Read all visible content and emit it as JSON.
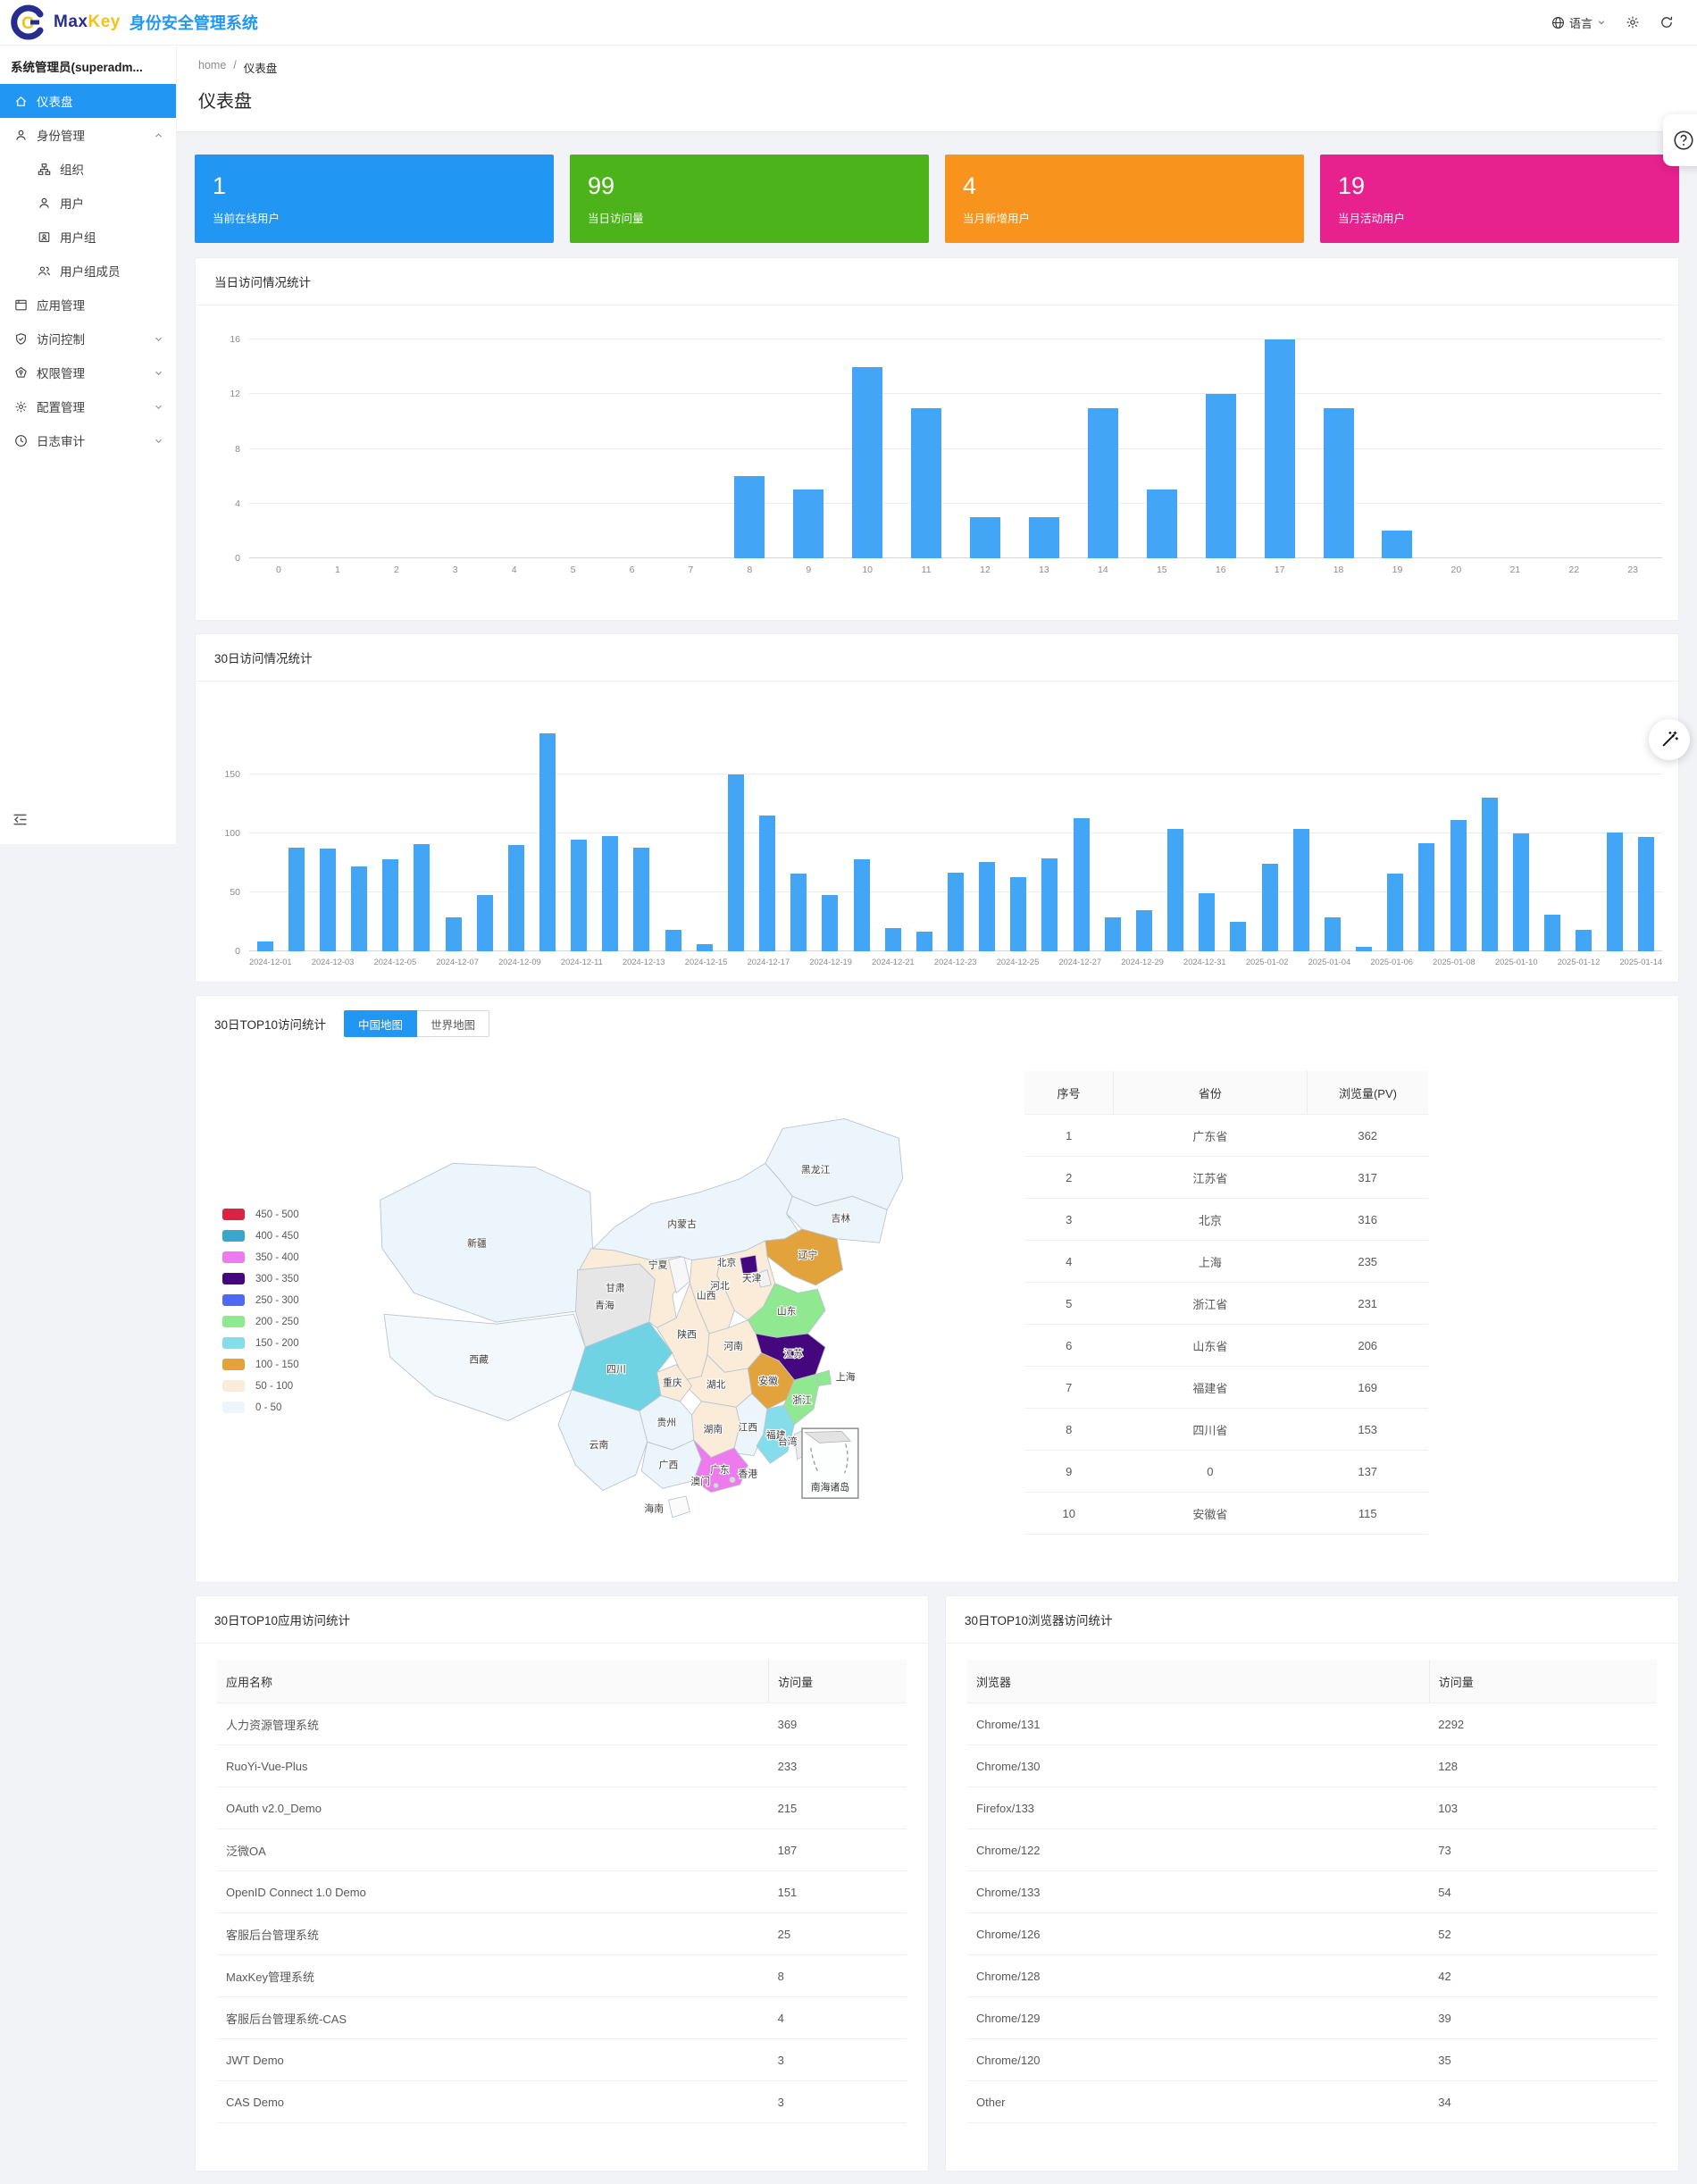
{
  "header": {
    "brand_max": "Max",
    "brand_key": "Key",
    "brand_title": "身份安全管理系统",
    "lang_label": "语言"
  },
  "sidebar": {
    "user": "系统管理员(superadm...",
    "items": [
      {
        "id": "dashboard",
        "icon": "home",
        "label": "仪表盘",
        "active": true
      },
      {
        "id": "identity",
        "icon": "user",
        "label": "身份管理",
        "expanded": true,
        "children": [
          {
            "id": "org",
            "icon": "org",
            "label": "组织"
          },
          {
            "id": "users",
            "icon": "user",
            "label": "用户"
          },
          {
            "id": "usergroup",
            "icon": "badge",
            "label": "用户组"
          },
          {
            "id": "groupmember",
            "icon": "users",
            "label": "用户组成员"
          }
        ]
      },
      {
        "id": "apps",
        "icon": "app",
        "label": "应用管理"
      },
      {
        "id": "access",
        "icon": "shield",
        "label": "访问控制",
        "collapsible": true
      },
      {
        "id": "permission",
        "icon": "perm",
        "label": "权限管理",
        "collapsible": true
      },
      {
        "id": "config",
        "icon": "gear",
        "label": "配置管理",
        "collapsible": true
      },
      {
        "id": "audit",
        "icon": "clock",
        "label": "日志审计",
        "collapsible": true
      }
    ]
  },
  "breadcrumb": {
    "home": "home",
    "sep": "/",
    "current": "仪表盘"
  },
  "page_title": "仪表盘",
  "stat_cards": [
    {
      "value": "1",
      "label": "当前在线用户",
      "color": "#2196f3"
    },
    {
      "value": "99",
      "label": "当日访问量",
      "color": "#4cb31b"
    },
    {
      "value": "4",
      "label": "当月新增用户",
      "color": "#f8941e"
    },
    {
      "value": "19",
      "label": "当月活动用户",
      "color": "#e7218e"
    }
  ],
  "chart_data": [
    {
      "type": "bar",
      "title": "当日访问情况统计",
      "xlabel": "",
      "ylabel": "",
      "x": [
        "0",
        "1",
        "2",
        "3",
        "4",
        "5",
        "6",
        "7",
        "8",
        "9",
        "10",
        "11",
        "12",
        "13",
        "14",
        "15",
        "16",
        "17",
        "18",
        "19",
        "20",
        "21",
        "22",
        "23"
      ],
      "values": [
        0,
        0,
        0,
        0,
        0,
        0,
        0,
        0,
        6,
        5,
        14,
        11,
        3,
        3,
        11,
        5,
        12,
        16,
        11,
        2,
        0,
        0,
        0,
        0
      ],
      "ylim": [
        0,
        16
      ],
      "yticks": [
        0,
        4,
        8,
        12,
        16
      ],
      "bar_color": "#42a5f5",
      "grid": true,
      "legend_position": "none"
    },
    {
      "type": "bar",
      "title": "30日访问情况统计",
      "xlabel": "",
      "ylabel": "",
      "x": [
        "2024-12-01",
        "2024-12-02",
        "2024-12-03",
        "2024-12-04",
        "2024-12-05",
        "2024-12-06",
        "2024-12-07",
        "2024-12-08",
        "2024-12-09",
        "2024-12-10",
        "2024-12-11",
        "2024-12-12",
        "2024-12-13",
        "2024-12-14",
        "2024-12-15",
        "2024-12-16",
        "2024-12-17",
        "2024-12-18",
        "2024-12-19",
        "2024-12-20",
        "2024-12-21",
        "2024-12-22",
        "2024-12-23",
        "2024-12-24",
        "2024-12-25",
        "2024-12-26",
        "2024-12-27",
        "2024-12-28",
        "2024-12-29",
        "2024-12-30",
        "2024-12-31",
        "2025-01-01",
        "2025-01-02",
        "2025-01-03",
        "2025-01-04",
        "2025-01-05",
        "2025-01-06",
        "2025-01-07",
        "2025-01-08",
        "2025-01-09",
        "2025-01-10",
        "2025-01-11",
        "2025-01-12",
        "2025-01-13",
        "2025-01-14"
      ],
      "values": [
        8,
        88,
        87,
        72,
        78,
        91,
        29,
        48,
        90,
        185,
        95,
        98,
        88,
        18,
        6,
        150,
        115,
        66,
        48,
        78,
        20,
        17,
        67,
        76,
        63,
        79,
        113,
        29,
        35,
        104,
        49,
        25,
        74,
        104,
        29,
        4,
        66,
        92,
        111,
        130,
        100,
        31,
        18,
        101,
        97
      ],
      "ylim": [
        0,
        200
      ],
      "yticks": [
        0,
        50,
        100,
        150
      ],
      "bar_color": "#42a5f5",
      "grid": true,
      "legend_position": "none",
      "label_every": 2
    },
    {
      "type": "table",
      "title": "30日TOP10访问统计",
      "columns": [
        "序号",
        "省份",
        "浏览量(PV)"
      ],
      "rows": [
        [
          "1",
          "广东省",
          "362"
        ],
        [
          "2",
          "江苏省",
          "317"
        ],
        [
          "3",
          "北京",
          "316"
        ],
        [
          "4",
          "上海",
          "235"
        ],
        [
          "5",
          "浙江省",
          "231"
        ],
        [
          "6",
          "山东省",
          "206"
        ],
        [
          "7",
          "福建省",
          "169"
        ],
        [
          "8",
          "四川省",
          "153"
        ],
        [
          "9",
          "0",
          "137"
        ],
        [
          "10",
          "安徽省",
          "115"
        ]
      ]
    }
  ],
  "map": {
    "title": "30日TOP10访问统计",
    "tabs": [
      {
        "label": "中国地图",
        "active": true
      },
      {
        "label": "世界地图",
        "active": false
      }
    ],
    "inset_label": "南海诸岛",
    "legend": [
      {
        "range": "450 - 500",
        "color": "#dc2344"
      },
      {
        "range": "400 - 450",
        "color": "#3ba6c9"
      },
      {
        "range": "350 - 400",
        "color": "#ee7bee"
      },
      {
        "range": "300 - 350",
        "color": "#45077e"
      },
      {
        "range": "250 - 300",
        "color": "#5069f2"
      },
      {
        "range": "200 - 250",
        "color": "#90e890"
      },
      {
        "range": "150 - 200",
        "color": "#85dcea"
      },
      {
        "range": "100 - 150",
        "color": "#e2a23c"
      },
      {
        "range": "50 - 100",
        "color": "#faecd8"
      },
      {
        "range": "0 - 50",
        "color": "#eef6fd"
      }
    ],
    "provinces": [
      {
        "id": "xinjiang",
        "name": "新疆",
        "fill": "#edf5fc",
        "lx": 120,
        "ly": 148
      },
      {
        "id": "xizang",
        "name": "西藏",
        "fill": "#f3f8fd",
        "lx": 122,
        "ly": 268
      },
      {
        "id": "qinghai",
        "name": "青海",
        "fill": "#e6e6e6",
        "lx": 252,
        "ly": 212
      },
      {
        "id": "gansu",
        "name": "甘肃",
        "fill": "#faecd8",
        "lx": 263,
        "ly": 194
      },
      {
        "id": "ningxia",
        "name": "宁夏",
        "fill": "#f7f7f7",
        "lx": 307,
        "ly": 170
      },
      {
        "id": "neimenggu",
        "name": "内蒙古",
        "fill": "#edf5fc",
        "lx": 332,
        "ly": 128
      },
      {
        "id": "heilongjiang",
        "name": "黑龙江",
        "fill": "#edf5fc",
        "lx": 470,
        "ly": 72
      },
      {
        "id": "jilin",
        "name": "吉林",
        "fill": "#edf5fc",
        "lx": 496,
        "ly": 122
      },
      {
        "id": "liaoning",
        "name": "辽宁",
        "fill": "#e2a23c",
        "lx": 462,
        "ly": 160
      },
      {
        "id": "hebei",
        "name": "河北",
        "fill": "#faecd8",
        "lx": 371,
        "ly": 192
      },
      {
        "id": "beijing",
        "name": "北京",
        "fill": "#45077e",
        "lx": 378,
        "ly": 168
      },
      {
        "id": "tianjin",
        "name": "天津",
        "fill": "#f2f2f2",
        "lx": 404,
        "ly": 184
      },
      {
        "id": "shanxi",
        "name": "山西",
        "fill": "#faecd8",
        "lx": 357,
        "ly": 202
      },
      {
        "id": "shandong",
        "name": "山东",
        "fill": "#90e890",
        "lx": 440,
        "ly": 218
      },
      {
        "id": "henan",
        "name": "河南",
        "fill": "#faecd8",
        "lx": 385,
        "ly": 254
      },
      {
        "id": "shaanxi",
        "name": "陕西",
        "fill": "#faecd8",
        "lx": 337,
        "ly": 242
      },
      {
        "id": "jiangsu",
        "name": "江苏",
        "fill": "#45077e",
        "lx": 447,
        "ly": 262
      },
      {
        "id": "shanghai",
        "name": "上海",
        "fill": "#90e890",
        "lx": 501,
        "ly": 286
      },
      {
        "id": "anhui",
        "name": "安徽",
        "fill": "#e2a23c",
        "lx": 421,
        "ly": 290
      },
      {
        "id": "zhejiang",
        "name": "浙江",
        "fill": "#90e890",
        "lx": 456,
        "ly": 310
      },
      {
        "id": "hubei",
        "name": "湖北",
        "fill": "#faecd8",
        "lx": 367,
        "ly": 294
      },
      {
        "id": "chongqing",
        "name": "重庆",
        "fill": "#faecd8",
        "lx": 322,
        "ly": 292
      },
      {
        "id": "sichuan",
        "name": "四川",
        "fill": "#6fd3e3",
        "lx": 264,
        "ly": 278
      },
      {
        "id": "hunan",
        "name": "湖南",
        "fill": "#faecd8",
        "lx": 364,
        "ly": 340
      },
      {
        "id": "jiangxi",
        "name": "江西",
        "fill": "#edf5fc",
        "lx": 400,
        "ly": 338
      },
      {
        "id": "fujian",
        "name": "福建",
        "fill": "#85dcea",
        "lx": 429,
        "ly": 346
      },
      {
        "id": "guizhou",
        "name": "贵州",
        "fill": "#edf5fc",
        "lx": 316,
        "ly": 333
      },
      {
        "id": "yunnan",
        "name": "云南",
        "fill": "#edf5fc",
        "lx": 246,
        "ly": 356
      },
      {
        "id": "guangxi",
        "name": "广西",
        "fill": "#edf5fc",
        "lx": 318,
        "ly": 377
      },
      {
        "id": "guangdong",
        "name": "广东",
        "fill": "#ee7bee",
        "lx": 371,
        "ly": 382
      },
      {
        "id": "hainan",
        "name": "海南",
        "fill": "#fbfbfb",
        "lx": 303,
        "ly": 422
      },
      {
        "id": "taiwan",
        "name": "台湾",
        "fill": "#ececec",
        "lx": 441,
        "ly": 353
      },
      {
        "id": "hongkong",
        "name": "香港",
        "fill": "#d9d9d9",
        "dot": [
          384,
          389,
          3
        ],
        "lx": 400,
        "ly": 386
      },
      {
        "id": "macau",
        "name": "澳门",
        "fill": "#d9d9d9",
        "dot": [
          367,
          395,
          2.5
        ],
        "lx": 351,
        "ly": 394
      }
    ]
  },
  "app_stats": {
    "title": "30日TOP10应用访问统计",
    "columns": [
      "应用名称",
      "访问量"
    ],
    "rows": [
      [
        "人力资源管理系统",
        "369"
      ],
      [
        "RuoYi-Vue-Plus",
        "233"
      ],
      [
        "OAuth v2.0_Demo",
        "215"
      ],
      [
        "泛微OA",
        "187"
      ],
      [
        "OpenID Connect 1.0 Demo",
        "151"
      ],
      [
        "客服后台管理系统",
        "25"
      ],
      [
        "MaxKey管理系统",
        "8"
      ],
      [
        "客服后台管理系统-CAS",
        "4"
      ],
      [
        "JWT Demo",
        "3"
      ],
      [
        "CAS Demo",
        "3"
      ]
    ]
  },
  "browser_stats": {
    "title": "30日TOP10浏览器访问统计",
    "columns": [
      "浏览器",
      "访问量"
    ],
    "rows": [
      [
        "Chrome/131",
        "2292"
      ],
      [
        "Chrome/130",
        "128"
      ],
      [
        "Firefox/133",
        "103"
      ],
      [
        "Chrome/122",
        "73"
      ],
      [
        "Chrome/133",
        "54"
      ],
      [
        "Chrome/126",
        "52"
      ],
      [
        "Chrome/128",
        "42"
      ],
      [
        "Chrome/129",
        "39"
      ],
      [
        "Chrome/120",
        "35"
      ],
      [
        "Other",
        "34"
      ]
    ]
  }
}
